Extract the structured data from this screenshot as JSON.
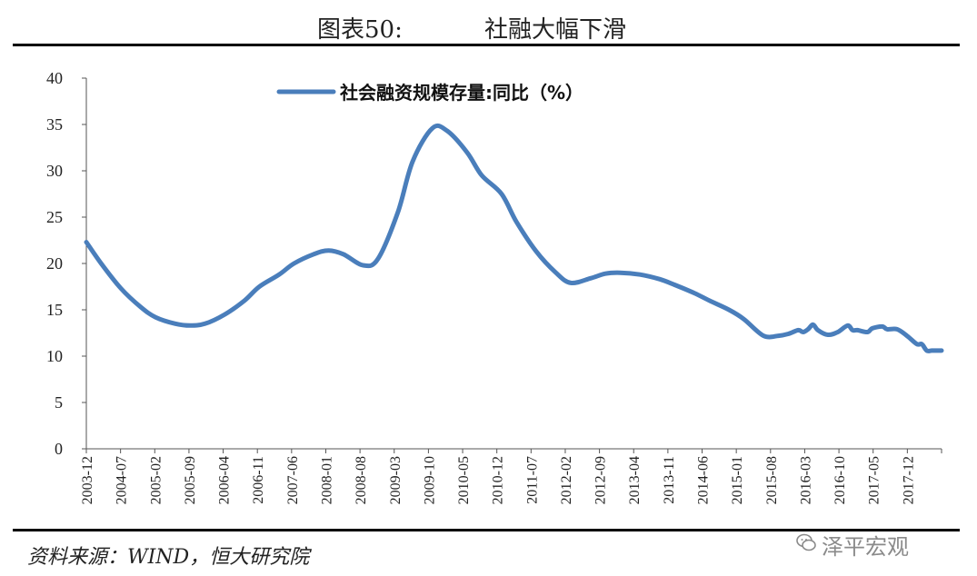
{
  "header": {
    "figure_number": "图表50:",
    "figure_title": "社融大幅下滑"
  },
  "footer": {
    "source": "资料来源：WIND，恒大研究院",
    "watermark": "泽平宏观",
    "watermark_icon": "wechat-icon"
  },
  "chart_data": {
    "type": "line",
    "title": "",
    "xlabel": "",
    "ylabel": "",
    "ylim": [
      0,
      40
    ],
    "yticks": [
      "0",
      "5",
      "10",
      "15",
      "20",
      "25",
      "30",
      "35",
      "40"
    ],
    "xticks": [
      "2003-12",
      "2004-07",
      "2005-02",
      "2005-09",
      "2006-04",
      "2006-11",
      "2007-06",
      "2008-01",
      "2008-08",
      "2009-03",
      "2009-10",
      "2010-05",
      "2010-12",
      "2011-07",
      "2012-02",
      "2012-09",
      "2013-04",
      "2013-11",
      "2014-06",
      "2015-01",
      "2015-08",
      "2016-03",
      "2016-10",
      "2017-05",
      "2017-12"
    ],
    "grid": false,
    "legend": "top-center",
    "line_color": "#4a7ebb",
    "series": [
      {
        "name": "社会融资规模存量:同比（%）",
        "x": [
          "2003-12",
          "2004-03",
          "2004-07",
          "2004-11",
          "2005-02",
          "2005-06",
          "2005-09",
          "2005-12",
          "2006-04",
          "2006-08",
          "2006-11",
          "2007-03",
          "2007-06",
          "2007-10",
          "2008-01",
          "2008-04",
          "2008-08",
          "2008-11",
          "2009-03",
          "2009-06",
          "2009-10",
          "2010-01",
          "2010-05",
          "2010-08",
          "2010-12",
          "2011-03",
          "2011-07",
          "2011-11",
          "2012-02",
          "2012-06",
          "2012-09",
          "2012-12",
          "2013-04",
          "2013-08",
          "2013-11",
          "2014-03",
          "2014-06",
          "2014-10",
          "2015-01",
          "2015-05",
          "2015-08",
          "2015-10",
          "2015-12",
          "2016-01",
          "2016-02",
          "2016-03",
          "2016-04",
          "2016-06",
          "2016-08",
          "2016-10",
          "2016-11",
          "2016-12",
          "2017-02",
          "2017-03",
          "2017-05",
          "2017-06",
          "2017-08",
          "2017-10",
          "2017-12",
          "2018-01",
          "2018-02",
          "2018-03",
          "2018-04",
          "2018-05"
        ],
        "values": [
          22.3,
          20.0,
          17.3,
          15.3,
          14.2,
          13.5,
          13.3,
          13.5,
          14.5,
          16.0,
          17.5,
          18.8,
          20.0,
          21.0,
          21.4,
          21.0,
          19.8,
          20.5,
          25.5,
          31.0,
          34.6,
          34.3,
          32.0,
          29.5,
          27.5,
          24.5,
          21.3,
          19.0,
          17.9,
          18.4,
          18.9,
          19.0,
          18.8,
          18.3,
          17.7,
          16.8,
          16.0,
          15.0,
          14.0,
          12.2,
          12.2,
          12.4,
          12.8,
          12.6,
          12.9,
          13.4,
          12.8,
          12.3,
          12.6,
          13.3,
          12.8,
          12.8,
          12.6,
          13.0,
          13.2,
          12.9,
          12.9,
          12.2,
          11.3,
          11.3,
          10.6,
          10.6,
          10.6,
          10.6
        ]
      }
    ]
  }
}
